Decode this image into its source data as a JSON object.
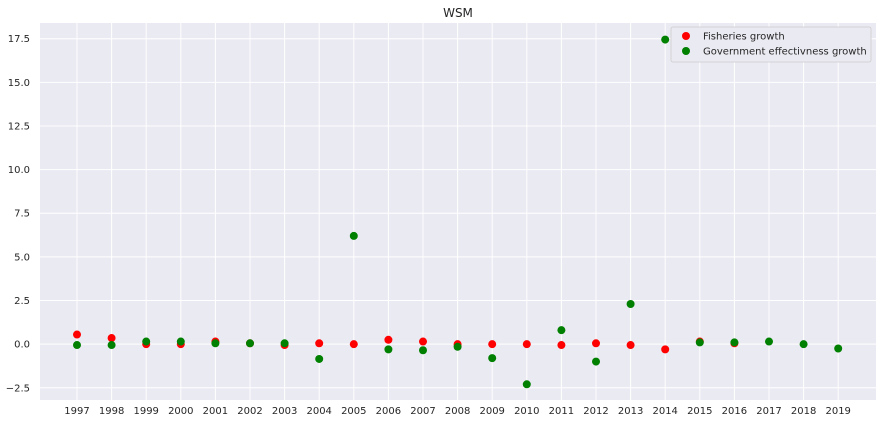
{
  "chart_data": {
    "type": "scatter",
    "title": "WSM",
    "xlabel": "",
    "ylabel": "",
    "x_ticks": [
      "1997",
      "1998",
      "1999",
      "2000",
      "2001",
      "2002",
      "2003",
      "2004",
      "2005",
      "2006",
      "2007",
      "2008",
      "2009",
      "2010",
      "2011",
      "2012",
      "2013",
      "2014",
      "2015",
      "2016",
      "2017",
      "2018",
      "2019"
    ],
    "ylim": [
      -3.2,
      18.4
    ],
    "y_ticks": [
      -2.5,
      0.0,
      2.5,
      5.0,
      7.5,
      10.0,
      12.5,
      15.0,
      17.5
    ],
    "y_tick_labels": [
      "−2.5",
      "0.0",
      "2.5",
      "5.0",
      "7.5",
      "10.0",
      "12.5",
      "15.0",
      "17.5"
    ],
    "grid": true,
    "legend_position": "top-right",
    "series": [
      {
        "name": "Fisheries growth",
        "color": "#ff0000",
        "points": [
          {
            "x": "1997",
            "y": 0.55
          },
          {
            "x": "1998",
            "y": 0.35
          },
          {
            "x": "1999",
            "y": 0.0
          },
          {
            "x": "2000",
            "y": 0.0
          },
          {
            "x": "2001",
            "y": 0.15
          },
          {
            "x": "2002",
            "y": 0.05
          },
          {
            "x": "2003",
            "y": -0.05
          },
          {
            "x": "2004",
            "y": 0.05
          },
          {
            "x": "2005",
            "y": 0.0
          },
          {
            "x": "2006",
            "y": 0.25
          },
          {
            "x": "2007",
            "y": 0.15
          },
          {
            "x": "2008",
            "y": 0.0
          },
          {
            "x": "2009",
            "y": 0.0
          },
          {
            "x": "2010",
            "y": 0.0
          },
          {
            "x": "2011",
            "y": -0.05
          },
          {
            "x": "2012",
            "y": 0.05
          },
          {
            "x": "2013",
            "y": -0.05
          },
          {
            "x": "2014",
            "y": -0.3
          },
          {
            "x": "2015",
            "y": 0.15
          },
          {
            "x": "2016",
            "y": 0.05
          }
        ]
      },
      {
        "name": "Government effectivness growth",
        "color": "#008000",
        "points": [
          {
            "x": "1997",
            "y": -0.05
          },
          {
            "x": "1998",
            "y": -0.05
          },
          {
            "x": "1999",
            "y": 0.15
          },
          {
            "x": "2000",
            "y": 0.15
          },
          {
            "x": "2001",
            "y": 0.05
          },
          {
            "x": "2002",
            "y": 0.05
          },
          {
            "x": "2003",
            "y": 0.05
          },
          {
            "x": "2004",
            "y": -0.85
          },
          {
            "x": "2005",
            "y": 6.2
          },
          {
            "x": "2006",
            "y": -0.3
          },
          {
            "x": "2007",
            "y": -0.35
          },
          {
            "x": "2008",
            "y": -0.15
          },
          {
            "x": "2009",
            "y": -0.8
          },
          {
            "x": "2010",
            "y": -2.3
          },
          {
            "x": "2011",
            "y": 0.8
          },
          {
            "x": "2012",
            "y": -1.0
          },
          {
            "x": "2013",
            "y": 2.3
          },
          {
            "x": "2014",
            "y": 17.45
          },
          {
            "x": "2015",
            "y": 0.1
          },
          {
            "x": "2016",
            "y": 0.1
          },
          {
            "x": "2017",
            "y": 0.15
          },
          {
            "x": "2018",
            "y": 0.0
          },
          {
            "x": "2019",
            "y": -0.25
          }
        ]
      }
    ]
  }
}
